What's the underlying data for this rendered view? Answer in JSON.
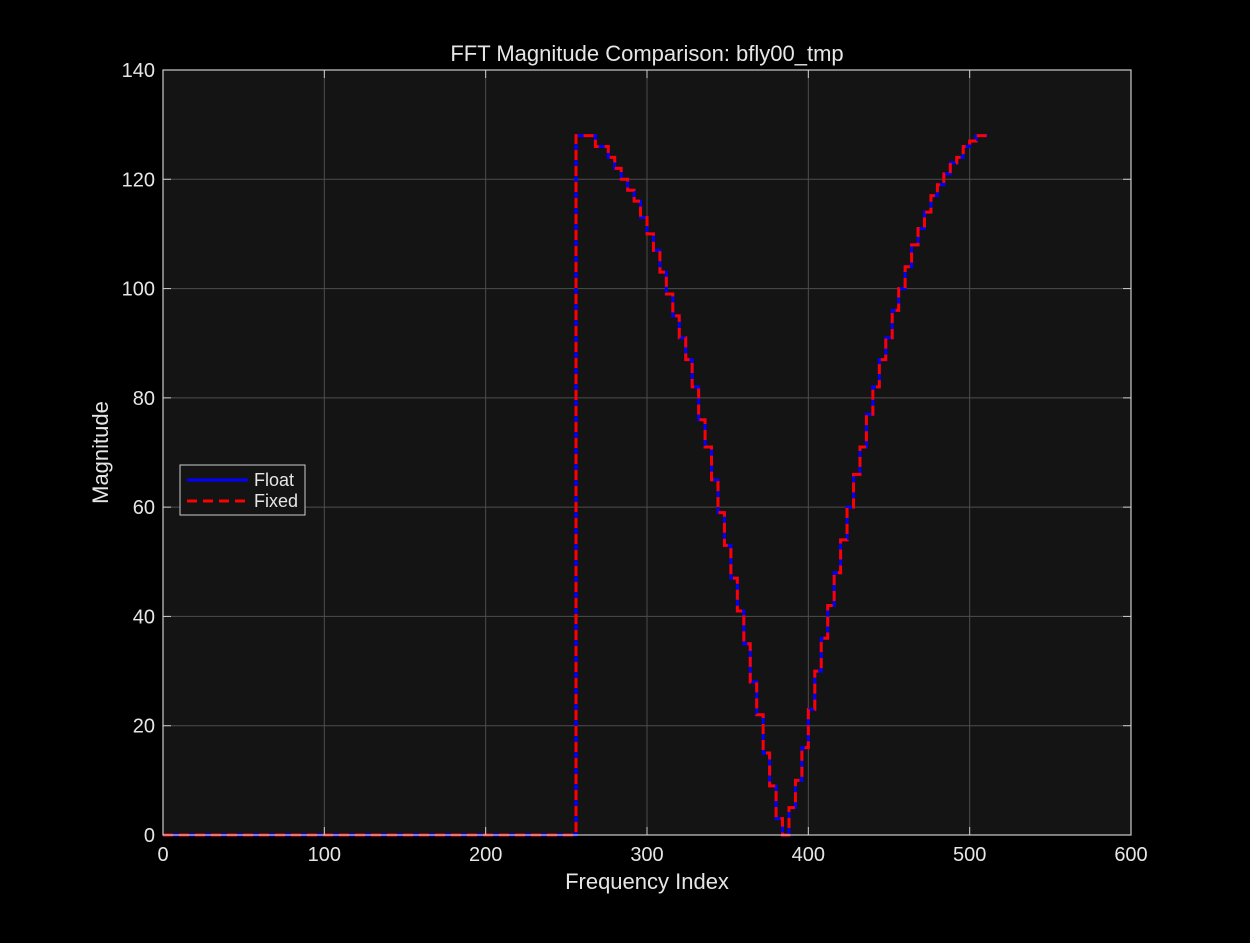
{
  "chart_data": {
    "type": "line",
    "title": "FFT Magnitude Comparison: bfly00_tmp",
    "xlabel": "Frequency Index",
    "ylabel": "Magnitude",
    "xlim": [
      0,
      600
    ],
    "ylim": [
      0,
      140
    ],
    "x_ticks": [
      0,
      100,
      200,
      300,
      400,
      500,
      600
    ],
    "y_ticks": [
      0,
      20,
      40,
      60,
      80,
      100,
      120,
      140
    ],
    "x_tick_labels": [
      "0",
      "100",
      "200",
      "300",
      "400",
      "500",
      "600"
    ],
    "y_tick_labels": [
      "0",
      "20",
      "40",
      "60",
      "80",
      "100",
      "120",
      "140"
    ],
    "grid": true,
    "legend_position": "west",
    "series": [
      {
        "name": "Float",
        "color": "#0000ff",
        "line_style": "solid",
        "x": [
          0,
          255,
          256,
          260,
          264,
          268,
          272,
          276,
          280,
          284,
          288,
          292,
          296,
          300,
          304,
          308,
          312,
          316,
          320,
          324,
          328,
          332,
          336,
          340,
          344,
          348,
          352,
          356,
          360,
          364,
          368,
          372,
          376,
          380,
          384,
          388,
          392,
          396,
          400,
          404,
          408,
          412,
          416,
          420,
          424,
          428,
          432,
          436,
          440,
          444,
          448,
          452,
          456,
          460,
          464,
          468,
          472,
          476,
          480,
          484,
          488,
          492,
          496,
          500,
          504,
          508,
          511
        ],
        "y": [
          0,
          0,
          128,
          128,
          128,
          126,
          126,
          124,
          122,
          120,
          118,
          116,
          113,
          110,
          107,
          103,
          99,
          95,
          91,
          87,
          82,
          76,
          71,
          65,
          59,
          53,
          47,
          41,
          35,
          28,
          22,
          15,
          9,
          3,
          0,
          5,
          10,
          16,
          23,
          30,
          36,
          42,
          48,
          54,
          60,
          66,
          71,
          77,
          82,
          87,
          91,
          96,
          100,
          104,
          108,
          111,
          114,
          117,
          119,
          121,
          123,
          124,
          126,
          127,
          128,
          128,
          128
        ]
      },
      {
        "name": "Fixed",
        "color": "#ff0000",
        "line_style": "dashed",
        "x": [
          0,
          255,
          256,
          260,
          264,
          268,
          272,
          276,
          280,
          284,
          288,
          292,
          296,
          300,
          304,
          308,
          312,
          316,
          320,
          324,
          328,
          332,
          336,
          340,
          344,
          348,
          352,
          356,
          360,
          364,
          368,
          372,
          376,
          380,
          384,
          388,
          392,
          396,
          400,
          404,
          408,
          412,
          416,
          420,
          424,
          428,
          432,
          436,
          440,
          444,
          448,
          452,
          456,
          460,
          464,
          468,
          472,
          476,
          480,
          484,
          488,
          492,
          496,
          500,
          504,
          508,
          511
        ],
        "y": [
          0,
          0,
          128,
          128,
          128,
          126,
          126,
          124,
          122,
          120,
          118,
          116,
          113,
          110,
          107,
          103,
          99,
          95,
          91,
          87,
          82,
          76,
          71,
          65,
          59,
          53,
          47,
          41,
          35,
          28,
          22,
          15,
          9,
          3,
          0,
          5,
          10,
          16,
          23,
          30,
          36,
          42,
          48,
          54,
          60,
          66,
          71,
          77,
          82,
          87,
          91,
          96,
          100,
          104,
          108,
          111,
          114,
          117,
          119,
          121,
          123,
          124,
          126,
          127,
          128,
          128,
          128
        ]
      }
    ]
  },
  "colors": {
    "figure_background": "#000000",
    "axes_background": "#141414",
    "grid": "#4d4d4d",
    "axis_line": "#cccccc",
    "text": "#e6e6e6"
  }
}
